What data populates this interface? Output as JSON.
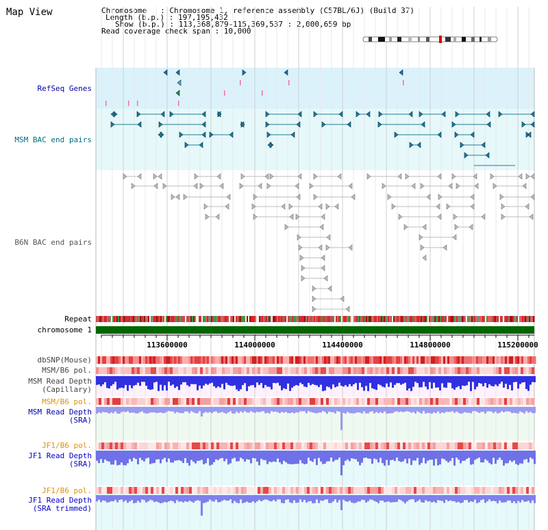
{
  "title": "Map View",
  "info": {
    "chromosome": "Chromosome   : Chromosome 1, reference assembly (C57BL/6J) (Build 37)",
    "length": "Length (b.p.) : 197,195,432",
    "show": "Show (b.p.) : 113,368,879-115,369,537 : 2,000,659 bp",
    "coverage": "Read coverage check span : 10,000"
  },
  "tracks": {
    "refseq": "RefSeq Genes",
    "msm_bac": "MSM BAC end pairs",
    "b6n_bac": "B6N BAC end pairs",
    "repeat": "Repeat",
    "chromosome": "chromosome 1",
    "dbsnp": "dbSNP(Mouse)",
    "msm_b6_pol1": "MSM/B6 pol.",
    "msm_depth_cap1": "MSM Read Depth",
    "msm_depth_cap2": "(Capillary)",
    "msm_b6_pol2": "MSM/B6 pol.",
    "msm_depth_sra1": "MSM Read Depth",
    "msm_depth_sra2": "(SRA)",
    "jf1_pol1": "JF1/B6 pol.",
    "jf1_depth1": "JF1 Read Depth",
    "jf1_depth2": "(SRA)",
    "jf1_pol2": "JF1/B6 pol.",
    "jf1_trim1": "JF1 Read Depth",
    "jf1_trim2": "(SRA trimmed)"
  },
  "ruler": {
    "ticks": [
      "113600000",
      "114000000",
      "114400000",
      "114800000",
      "115200000"
    ]
  },
  "colors": {
    "refseq_bg": "#dbf2fb",
    "msm_bg": "#e6f8fa",
    "chromosome_bar": "#006600",
    "label_black": "#000000",
    "label_blue": "#0000aa",
    "label_teal": "#006d82",
    "label_orange": "#e0900c",
    "label_darkblue": "#0000cc"
  }
}
